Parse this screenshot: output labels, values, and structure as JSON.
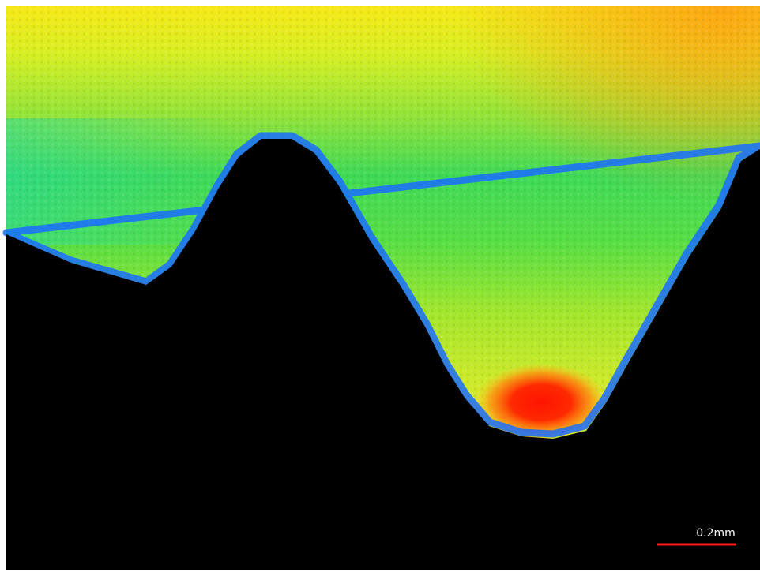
{
  "scale_bar": {
    "label": "0.2mm"
  }
}
